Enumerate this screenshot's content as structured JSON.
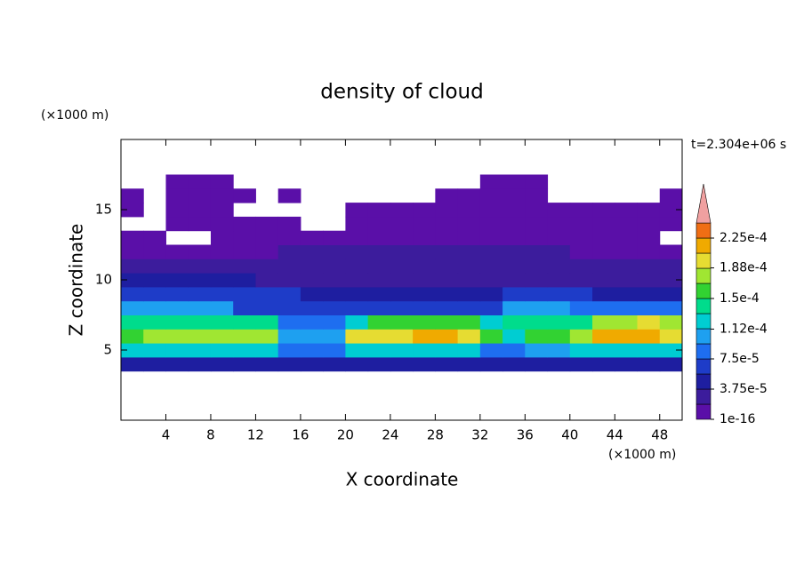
{
  "chart_data": {
    "type": "contour",
    "title": "density of cloud",
    "x_label": "X coordinate",
    "y_label": "Z coordinate",
    "x_unit": "(×1000 m)",
    "y_unit": "(×1000 m)",
    "time_label": "t=2.304e+06 s",
    "xlim": [
      0,
      50
    ],
    "ylim": [
      0,
      20
    ],
    "xticks": [
      4,
      8,
      12,
      16,
      20,
      24,
      28,
      32,
      36,
      40,
      44,
      48
    ],
    "yticks": [
      5,
      10,
      15
    ],
    "x": [
      1,
      3,
      5,
      7,
      9,
      11,
      13,
      15,
      17,
      19,
      21,
      23,
      25,
      27,
      29,
      31,
      33,
      35,
      37,
      39,
      41,
      43,
      45,
      47,
      49
    ],
    "z": [
      4,
      5,
      6,
      7,
      8,
      9,
      10,
      11,
      12,
      13,
      14,
      15,
      16,
      17
    ],
    "values": [
      [
        4.7e-05,
        4.7e-05,
        4.7e-05,
        4.7e-05,
        4.7e-05,
        4.7e-05,
        4.7e-05,
        4.7e-05,
        4.7e-05,
        4.7e-05,
        4.7e-05,
        4.7e-05,
        4.7e-05,
        4.7e-05,
        4.7e-05,
        4.7e-05,
        4.7e-05,
        4.7e-05,
        4.7e-05,
        4.7e-05,
        4.7e-05,
        4.7e-05,
        4.7e-05,
        4.7e-05,
        4.7e-05
      ],
      [
        0.000122,
        0.000122,
        0.000122,
        0.000122,
        0.000122,
        0.000122,
        0.000122,
        8.4e-05,
        8.4e-05,
        8.4e-05,
        0.000122,
        0.000122,
        0.000122,
        0.000122,
        0.000122,
        0.000122,
        8.4e-05,
        8.4e-05,
        0.000103,
        0.000103,
        0.000122,
        0.000122,
        0.000122,
        0.000122,
        0.000122
      ],
      [
        0.000159,
        0.000178,
        0.000178,
        0.000178,
        0.000178,
        0.000178,
        0.000178,
        0.000103,
        0.000103,
        0.000103,
        0.000197,
        0.000197,
        0.000197,
        0.000215,
        0.000215,
        0.000197,
        0.000159,
        0.000122,
        0.000159,
        0.000159,
        0.000178,
        0.000215,
        0.000215,
        0.000215,
        0.000197
      ],
      [
        0.00014,
        0.00014,
        0.00014,
        0.00014,
        0.00014,
        0.00014,
        0.00014,
        8.4e-05,
        8.4e-05,
        8.4e-05,
        0.000122,
        0.000159,
        0.000159,
        0.000159,
        0.000159,
        0.000159,
        0.000122,
        0.00014,
        0.00014,
        0.00014,
        0.00014,
        0.000178,
        0.000178,
        0.000197,
        0.000178
      ],
      [
        0.000103,
        0.000103,
        0.000103,
        0.000103,
        0.000103,
        6.5e-05,
        6.5e-05,
        6.5e-05,
        6.5e-05,
        6.5e-05,
        6.5e-05,
        6.5e-05,
        6.5e-05,
        6.5e-05,
        6.5e-05,
        6.5e-05,
        6.5e-05,
        0.000103,
        0.000103,
        0.000103,
        8.4e-05,
        8.4e-05,
        8.4e-05,
        8.4e-05,
        8.4e-05
      ],
      [
        6.5e-05,
        6.5e-05,
        6.5e-05,
        6.5e-05,
        6.5e-05,
        6.5e-05,
        6.5e-05,
        6.5e-05,
        4.7e-05,
        4.7e-05,
        4.7e-05,
        4.7e-05,
        4.7e-05,
        4.7e-05,
        4.7e-05,
        4.7e-05,
        4.7e-05,
        6.5e-05,
        6.5e-05,
        6.5e-05,
        6.5e-05,
        4.7e-05,
        4.7e-05,
        4.7e-05,
        4.7e-05
      ],
      [
        4.7e-05,
        4.7e-05,
        4.7e-05,
        4.7e-05,
        4.7e-05,
        4.7e-05,
        2.8e-05,
        2.8e-05,
        2.8e-05,
        2.8e-05,
        2.8e-05,
        2.8e-05,
        2.8e-05,
        2.8e-05,
        2.8e-05,
        2.8e-05,
        2.8e-05,
        2.8e-05,
        2.8e-05,
        2.8e-05,
        2.8e-05,
        2.8e-05,
        2.8e-05,
        2.8e-05,
        2.8e-05
      ],
      [
        2.8e-05,
        2.8e-05,
        2.8e-05,
        2.8e-05,
        2.8e-05,
        2.8e-05,
        2.8e-05,
        2.8e-05,
        2.8e-05,
        2.8e-05,
        2.8e-05,
        2.8e-05,
        2.8e-05,
        2.8e-05,
        2.8e-05,
        2.8e-05,
        2.8e-05,
        2.8e-05,
        2.8e-05,
        2.8e-05,
        2.8e-05,
        2.8e-05,
        2.8e-05,
        2.8e-05,
        2.8e-05
      ],
      [
        1e-05,
        1e-05,
        1e-05,
        1e-05,
        1e-05,
        1e-05,
        1e-05,
        2.8e-05,
        2.8e-05,
        2.8e-05,
        2.8e-05,
        2.8e-05,
        2.8e-05,
        2.8e-05,
        2.8e-05,
        2.8e-05,
        2.8e-05,
        2.8e-05,
        2.8e-05,
        2.8e-05,
        1e-05,
        1e-05,
        1e-05,
        1e-05,
        1e-05
      ],
      [
        1e-05,
        1e-05,
        null,
        null,
        1e-05,
        1e-05,
        1e-05,
        1e-05,
        1e-05,
        1e-05,
        1e-05,
        1e-05,
        1e-05,
        1e-05,
        1e-05,
        1e-05,
        1e-05,
        1e-05,
        1e-05,
        1e-05,
        1e-05,
        1e-05,
        1e-05,
        1e-05,
        null
      ],
      [
        null,
        null,
        1e-05,
        1e-05,
        1e-05,
        1e-05,
        1e-05,
        1e-05,
        null,
        null,
        1e-05,
        1e-05,
        1e-05,
        1e-05,
        1e-05,
        1e-05,
        1e-05,
        1e-05,
        1e-05,
        1e-05,
        1e-05,
        1e-05,
        1e-05,
        1e-05,
        1e-05
      ],
      [
        1e-05,
        null,
        1e-05,
        1e-05,
        1e-05,
        null,
        null,
        null,
        null,
        null,
        1e-05,
        1e-05,
        1e-05,
        1e-05,
        1e-05,
        1e-05,
        1e-05,
        1e-05,
        1e-05,
        1e-05,
        1e-05,
        1e-05,
        1e-05,
        1e-05,
        1e-05
      ],
      [
        1e-05,
        null,
        1e-05,
        1e-05,
        1e-05,
        1e-05,
        null,
        1e-05,
        null,
        null,
        null,
        null,
        null,
        null,
        1e-05,
        1e-05,
        1e-05,
        1e-05,
        1e-05,
        null,
        null,
        null,
        null,
        null,
        1e-05
      ],
      [
        null,
        null,
        1e-05,
        1e-05,
        1e-05,
        null,
        null,
        null,
        null,
        null,
        null,
        null,
        null,
        null,
        null,
        null,
        1e-05,
        1e-05,
        1e-05,
        null,
        null,
        null,
        null,
        null,
        null
      ]
    ],
    "levels": [
      1e-16,
      1.875e-05,
      3.75e-05,
      5.625e-05,
      7.5e-05,
      9.375e-05,
      0.0001125,
      0.00013125,
      0.00015,
      0.00016875,
      0.0001875,
      0.00020625,
      0.000225,
      0.00024375
    ],
    "colors": [
      "#5a0fa8",
      "#3c1c9c",
      "#1e1ea0",
      "#1e3cc8",
      "#1e6ef0",
      "#1ea0f0",
      "#00cdd2",
      "#00dc8c",
      "#32d232",
      "#a0e632",
      "#e6dc32",
      "#f0aa00",
      "#f06e14",
      "#e61e1e",
      "#f0a0a0"
    ],
    "colorbar_ticks": [
      {
        "value": 1e-16,
        "label": "1e-16"
      },
      {
        "value": 3.75e-05,
        "label": "3.75e-5"
      },
      {
        "value": 7.5e-05,
        "label": "7.5e-5"
      },
      {
        "value": 0.000112,
        "label": "1.12e-4"
      },
      {
        "value": 0.00015,
        "label": "1.5e-4"
      },
      {
        "value": 0.000188,
        "label": "1.88e-4"
      },
      {
        "value": 0.000225,
        "label": "2.25e-4"
      }
    ]
  }
}
